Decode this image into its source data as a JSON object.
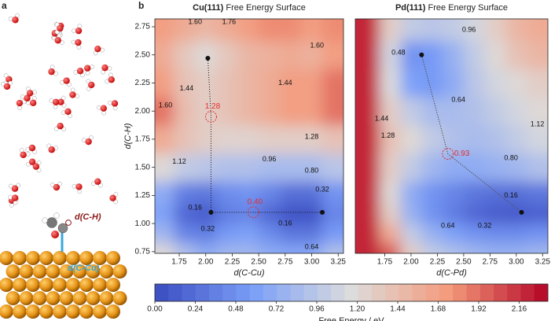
{
  "panel_a": {
    "label": "a",
    "annotations": [
      "d(C-H)",
      "d(C-Cu)"
    ]
  },
  "panel_b": {
    "label": "b"
  },
  "chart_data": [
    {
      "type": "contour",
      "title_bold": "Cu(111)",
      "title": "Free Energy Surface",
      "x_label": "d(C-Cu)",
      "y_label": "d(C-H)",
      "xlim": [
        1.52,
        3.3
      ],
      "ylim": [
        0.735,
        2.82
      ],
      "xticks": [
        1.75,
        {
          "value": 2.0,
          "label": "2.00"
        },
        2.25,
        {
          "value": 2.5,
          "label": "2.50"
        },
        2.75,
        {
          "value": 3.0,
          "label": "3.00"
        },
        3.25
      ],
      "yticks": [
        0.75,
        {
          "value": 1.0,
          "label": "1.00"
        },
        1.25,
        {
          "value": 1.5,
          "label": "1.50"
        },
        1.75,
        {
          "value": 2.0,
          "label": "2.00"
        },
        2.25,
        {
          "value": 2.5,
          "label": "2.50"
        },
        2.75
      ],
      "grid_x": [
        1.6,
        1.8,
        2.0,
        2.2,
        2.4,
        2.6,
        2.8,
        3.0,
        3.2
      ],
      "grid_y": [
        0.75,
        0.9,
        1.1,
        1.25,
        1.5,
        1.75,
        2.0,
        2.25,
        2.5,
        2.75
      ],
      "z": [
        [
          1.2,
          0.9,
          0.7,
          0.8,
          0.8,
          0.7,
          0.65,
          0.65,
          0.9
        ],
        [
          0.8,
          0.4,
          0.35,
          0.55,
          0.6,
          0.45,
          0.3,
          0.3,
          0.55
        ],
        [
          0.6,
          0.2,
          0.1,
          0.35,
          0.4,
          0.2,
          0.05,
          0.05,
          0.4
        ],
        [
          0.7,
          0.35,
          0.3,
          0.45,
          0.5,
          0.4,
          0.25,
          0.25,
          0.5
        ],
        [
          1.2,
          1.0,
          0.95,
          0.9,
          0.9,
          0.85,
          0.85,
          0.85,
          0.95
        ],
        [
          1.6,
          1.4,
          1.3,
          1.25,
          1.25,
          1.3,
          1.3,
          1.3,
          1.4
        ],
        [
          1.9,
          1.45,
          1.3,
          1.4,
          1.5,
          1.6,
          1.7,
          1.7,
          1.9
        ],
        [
          1.7,
          1.4,
          1.3,
          1.4,
          1.5,
          1.6,
          1.7,
          1.7,
          1.9
        ],
        [
          1.6,
          1.35,
          1.2,
          1.35,
          1.5,
          1.55,
          1.6,
          1.55,
          1.7
        ],
        [
          1.7,
          1.6,
          1.5,
          1.6,
          1.7,
          1.8,
          1.8,
          1.7,
          1.8
        ]
      ],
      "contour_labels": [
        {
          "x": 1.9,
          "y": 2.79,
          "value": 1.6,
          "label": "1.60"
        },
        {
          "x": 2.22,
          "y": 2.79,
          "value": 1.76,
          "label": "1.76"
        },
        {
          "x": 3.05,
          "y": 2.58,
          "value": 1.6,
          "label": "1.60"
        },
        {
          "x": 1.82,
          "y": 2.2,
          "value": 1.44,
          "label": "1.44"
        },
        {
          "x": 2.75,
          "y": 2.25,
          "value": 1.44,
          "label": "1.44"
        },
        {
          "x": 1.62,
          "y": 2.05,
          "value": 1.6,
          "label": "1.60"
        },
        {
          "x": 3.0,
          "y": 1.77,
          "value": 1.28
        },
        {
          "x": 1.75,
          "y": 1.55,
          "value": 1.12,
          "label": "1.12"
        },
        {
          "x": 2.6,
          "y": 1.57,
          "value": 0.96,
          "label": "0.96"
        },
        {
          "x": 3.0,
          "y": 1.47,
          "value": 0.8,
          "label": "0.80"
        },
        {
          "x": 3.1,
          "y": 1.3,
          "value": 0.32,
          "label": "0.32"
        },
        {
          "x": 1.9,
          "y": 1.14,
          "value": 0.16,
          "label": "0.16"
        },
        {
          "x": 2.02,
          "y": 0.95,
          "value": 0.32,
          "label": "0.32"
        },
        {
          "x": 2.75,
          "y": 1.0,
          "value": 0.16,
          "label": "0.16"
        },
        {
          "x": 3.0,
          "y": 0.79,
          "value": 0.64,
          "label": "0.64"
        }
      ],
      "path": {
        "x": [
          2.02,
          2.05,
          2.05,
          2.45,
          3.1
        ],
        "y": [
          2.47,
          1.95,
          1.1,
          1.1,
          1.1
        ]
      },
      "minima": {
        "x": [
          2.02,
          2.05,
          3.1
        ],
        "y": [
          2.47,
          1.1,
          1.1
        ]
      },
      "transition_states": [
        {
          "x": 2.05,
          "y": 1.95,
          "value": 1.28
        },
        {
          "x": 2.45,
          "y": 1.1,
          "value": 0.4,
          "label": "0.40"
        }
      ]
    },
    {
      "type": "contour",
      "title_bold": "Pd(111)",
      "title": "Free Energy Surface",
      "x_label": "d(C-Pd)",
      "xlim": [
        1.47,
        3.3
      ],
      "ylim": [
        0.735,
        2.82
      ],
      "xticks": [
        1.75,
        {
          "value": 2.0,
          "label": "2.00"
        },
        2.25,
        {
          "value": 2.5,
          "label": "2.50"
        },
        2.75,
        {
          "value": 3.0,
          "label": "3.00"
        },
        3.25
      ],
      "grid_x": [
        1.6,
        1.8,
        2.0,
        2.2,
        2.4,
        2.6,
        2.8,
        3.0,
        3.2
      ],
      "grid_y": [
        0.75,
        0.9,
        1.1,
        1.25,
        1.5,
        1.75,
        2.0,
        2.25,
        2.5,
        2.75
      ],
      "z": [
        [
          2.2,
          2.0,
          1.3,
          1.0,
          0.9,
          0.8,
          0.75,
          0.75,
          0.8
        ],
        [
          2.2,
          1.6,
          1.0,
          0.75,
          0.6,
          0.5,
          0.45,
          0.45,
          0.5
        ],
        [
          2.2,
          1.3,
          0.75,
          0.5,
          0.35,
          0.2,
          0.12,
          0.1,
          0.15
        ],
        [
          2.2,
          1.2,
          0.7,
          0.5,
          0.4,
          0.3,
          0.25,
          0.25,
          0.3
        ],
        [
          2.2,
          1.3,
          1.0,
          0.8,
          0.7,
          0.7,
          0.75,
          0.8,
          0.9
        ],
        [
          2.2,
          1.4,
          1.2,
          1.0,
          0.9,
          0.85,
          0.9,
          1.0,
          1.1
        ],
        [
          2.2,
          1.3,
          1.0,
          0.85,
          0.85,
          0.9,
          1.0,
          1.1,
          1.2
        ],
        [
          2.2,
          1.15,
          0.6,
          0.55,
          0.7,
          0.95,
          1.1,
          1.2,
          1.3
        ],
        [
          2.2,
          1.1,
          0.5,
          0.55,
          0.75,
          1.0,
          1.2,
          1.4,
          1.5
        ],
        [
          2.2,
          1.3,
          1.0,
          0.95,
          1.0,
          1.1,
          1.3,
          1.5,
          1.6
        ]
      ],
      "contour_labels": [
        {
          "x": 2.55,
          "y": 2.72,
          "value": 0.96,
          "label": "0.96"
        },
        {
          "x": 1.88,
          "y": 2.52,
          "value": 0.48,
          "label": "0.48"
        },
        {
          "x": 2.45,
          "y": 2.1,
          "value": 0.64,
          "label": "0.64"
        },
        {
          "x": 3.2,
          "y": 1.88,
          "value": 1.12,
          "label": "1.12"
        },
        {
          "x": 1.78,
          "y": 1.78,
          "value": 1.28,
          "label": "1.28"
        },
        {
          "x": 1.72,
          "y": 1.93,
          "value": 1.44,
          "label": "1.44"
        },
        {
          "x": 2.95,
          "y": 1.58,
          "value": 0.8,
          "label": "0.80"
        },
        {
          "x": 2.95,
          "y": 1.25,
          "value": 0.16,
          "label": "0.16"
        },
        {
          "x": 2.7,
          "y": 0.98,
          "value": 0.32,
          "label": "0.32"
        },
        {
          "x": 2.35,
          "y": 0.98,
          "value": 0.64,
          "label": "0.64"
        }
      ],
      "path": {
        "x": [
          2.1,
          2.35,
          3.05
        ],
        "y": [
          2.5,
          1.62,
          1.1
        ]
      },
      "minima": {
        "x": [
          2.1,
          3.05
        ],
        "y": [
          2.5,
          1.1
        ]
      },
      "transition_states": [
        {
          "x": 2.35,
          "y": 1.62,
          "value": 0.93
        }
      ]
    },
    {
      "type": "colorbar",
      "label": "Free Energy / eV",
      "clim": [
        0,
        2.33
      ],
      "colormap": [
        "#3b4cc0",
        "#7b9ff9",
        "#dddcdc",
        "#f49a7b",
        "#b40426"
      ],
      "ticks": [
        {
          "value": 0,
          "label": "0.00"
        },
        0.24,
        0.48,
        0.72,
        0.96,
        {
          "value": 1.2,
          "label": "1.20"
        },
        1.44,
        1.68,
        1.92,
        2.16
      ]
    }
  ]
}
